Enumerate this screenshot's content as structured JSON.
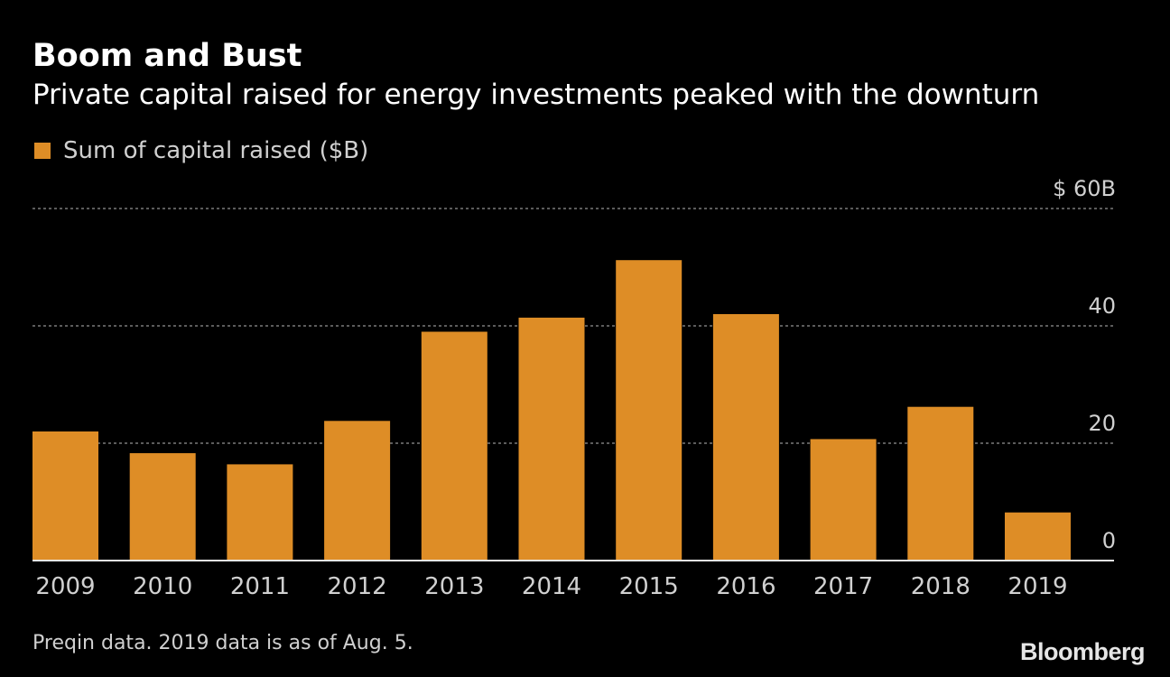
{
  "title": "Boom and Bust",
  "subtitle": "Private capital raised for energy investments peaked with the downturn",
  "legend": {
    "label": "Sum of capital raised ($B)",
    "color": "#de8d26"
  },
  "footnote": "Preqin data. 2019 data is as of Aug. 5.",
  "brand": "Bloomberg",
  "colors": {
    "background": "#000000",
    "bar": "#de8d26",
    "grid": "#7a7a7a",
    "text": "#d0d0d0"
  },
  "chart_data": {
    "type": "bar",
    "categories": [
      "2009",
      "2010",
      "2011",
      "2012",
      "2013",
      "2014",
      "2015",
      "2016",
      "2017",
      "2018",
      "2019"
    ],
    "series": [
      {
        "name": "Sum of capital raised ($B)",
        "values": [
          22,
          18.3,
          16.4,
          23.8,
          39,
          41.4,
          51.2,
          42,
          20.7,
          26.2,
          8.2
        ]
      }
    ],
    "title": "Boom and Bust",
    "subtitle": "Private capital raised for energy investments peaked with the downturn",
    "ylim": [
      0,
      60
    ],
    "yticks": [
      0,
      20,
      40,
      60
    ],
    "ytick_labels": [
      "0",
      "20",
      "40",
      "$ 60B"
    ],
    "yaxis_side": "right",
    "grid": true,
    "legend_position": "top-left"
  }
}
